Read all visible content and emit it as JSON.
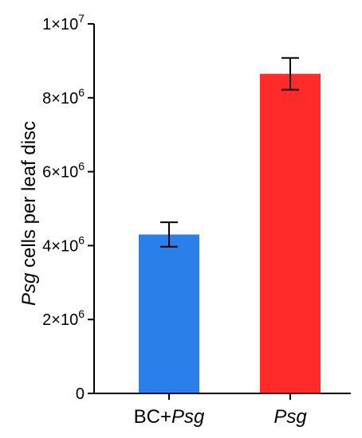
{
  "chart_data": {
    "type": "bar",
    "title": "",
    "xlabel": "",
    "ylabel": {
      "italic_part": "Psg",
      "rest": " cells per leaf disc"
    },
    "ylim": [
      0,
      10000000
    ],
    "y_ticks": [
      {
        "value": 0,
        "mantissa": "0",
        "exp": ""
      },
      {
        "value": 2000000,
        "mantissa": "2×10",
        "exp": "6"
      },
      {
        "value": 4000000,
        "mantissa": "4×10",
        "exp": "6"
      },
      {
        "value": 6000000,
        "mantissa": "6×10",
        "exp": "6"
      },
      {
        "value": 8000000,
        "mantissa": "8×10",
        "exp": "6"
      },
      {
        "value": 10000000,
        "mantissa": "1×10",
        "exp": "7"
      }
    ],
    "categories": [
      {
        "prefix": "BC+",
        "italic": "Psg"
      },
      {
        "prefix": "",
        "italic": "Psg"
      }
    ],
    "values": [
      4300000,
      8650000
    ],
    "errors": [
      330000,
      430000
    ],
    "colors": [
      "#2B7FEB",
      "#FF2A2A"
    ],
    "grid": false,
    "legend": "none"
  }
}
